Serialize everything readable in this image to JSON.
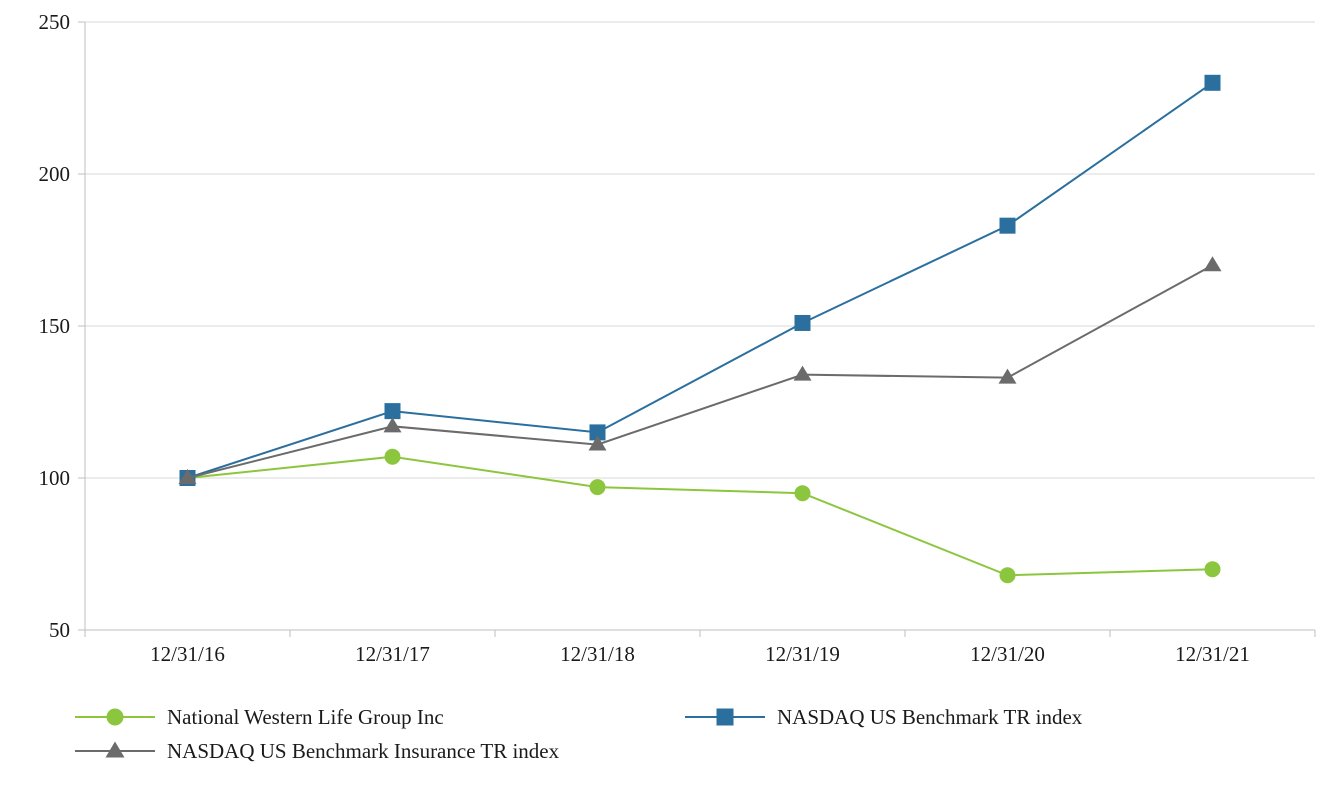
{
  "chart_data": {
    "type": "line",
    "title": "",
    "xlabel": "",
    "ylabel": "",
    "x": [
      "12/31/16",
      "12/31/17",
      "12/31/18",
      "12/31/19",
      "12/31/20",
      "12/31/21"
    ],
    "series": [
      {
        "name": "National Western Life Group Inc",
        "marker": "circle",
        "color": "#8cc63e",
        "values": [
          100,
          107,
          97,
          95,
          68,
          70
        ]
      },
      {
        "name": "NASDAQ US Benchmark TR index",
        "marker": "square",
        "color": "#2a6f9e",
        "values": [
          100,
          122,
          115,
          151,
          183,
          230
        ]
      },
      {
        "name": "NASDAQ US Benchmark Insurance TR index",
        "marker": "triangle",
        "color": "#6b6b6b",
        "values": [
          100,
          117,
          111,
          134,
          133,
          170
        ]
      }
    ],
    "ylim": [
      50,
      250
    ],
    "yticks": [
      50,
      100,
      150,
      200,
      250
    ],
    "grid": true,
    "legend_position": "bottom",
    "style": {
      "grid_color": "#d9d9d9",
      "axis_color": "#bfbfbf",
      "background": "#ffffff"
    }
  }
}
